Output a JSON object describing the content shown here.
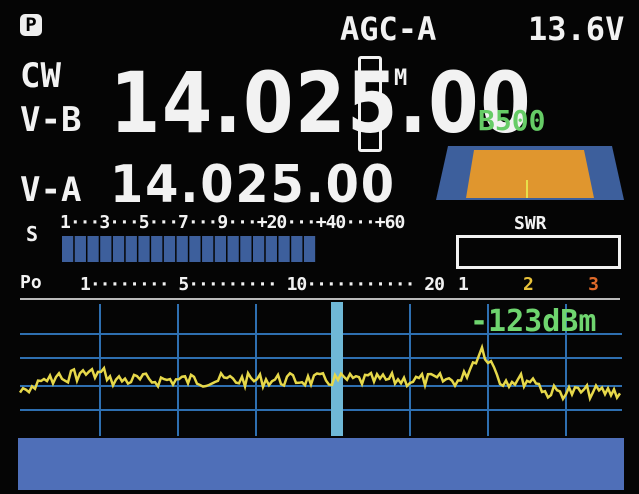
{
  "header": {
    "p_badge": "P",
    "agc": "AGC-A",
    "voltage": "13.6V"
  },
  "mode": "CW",
  "vfo_b": {
    "label": "V-B",
    "frequency": "14.025.00"
  },
  "vfo_a": {
    "label": "V-A",
    "frequency": "14.025.00"
  },
  "m_icon": "M",
  "filter": {
    "label": "B500",
    "fill_color": "#e0962e",
    "skirt_color": "#3d5f9c"
  },
  "s_meter": {
    "label": "S",
    "scale": "1···3···5···7···9···+20···+40···+60",
    "level": 0.67,
    "bar_color": "#3d5f9c"
  },
  "swr": {
    "label": "SWR",
    "scale": [
      "1",
      "2",
      "3",
      "∞"
    ],
    "scale_colors": [
      "#eeeeee",
      "#e8c23a",
      "#e06a2a",
      "#e06a2a"
    ]
  },
  "po_meter": {
    "label": "Po",
    "scale": "1········ 5········· 10··········· 20"
  },
  "spectrum": {
    "level_text": "-123dBm",
    "trace_color": "#e6d84a",
    "grid_color": "#2e6fb0",
    "center_marker_color": "#6fb8d6"
  },
  "waterfall": {
    "color": "#4f6fb8"
  }
}
